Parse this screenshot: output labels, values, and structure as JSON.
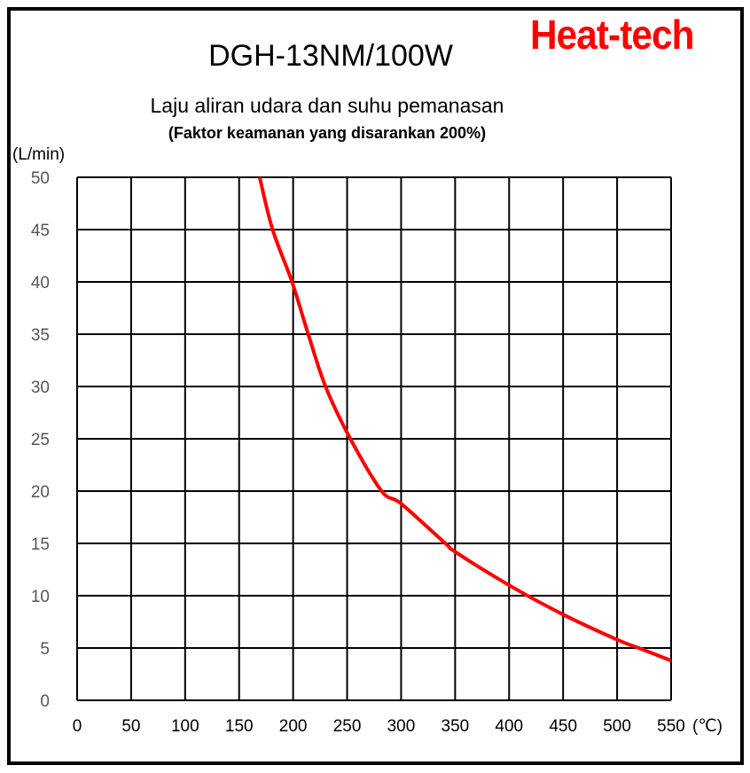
{
  "brand": "Heat-tech",
  "colors": {
    "curve": "#ff0000",
    "grid": "#000000",
    "brand": "#ff0000"
  },
  "chart_data": {
    "type": "line",
    "title": "DGH-13NM/100W",
    "subtitle": "Laju aliran udara dan suhu pemanasan",
    "subtitle2": "(Faktor keamanan yang disarankan 200%)",
    "ylabel": "(L/min)",
    "xlabel": "(℃)",
    "xlim": [
      0,
      550
    ],
    "ylim": [
      0,
      50
    ],
    "grid": true,
    "xticks": [
      "0",
      "50",
      "100",
      "150",
      "200",
      "250",
      "300",
      "350",
      "400",
      "450",
      "500",
      "550"
    ],
    "yticks": [
      "0",
      "5",
      "10",
      "15",
      "20",
      "25",
      "30",
      "35",
      "40",
      "45",
      "50"
    ],
    "series": [
      {
        "name": "airflow",
        "x": [
          169,
          181,
          199,
          214,
          230,
          253,
          282,
          300,
          341,
          350,
          400,
          450,
          500,
          520,
          550
        ],
        "y": [
          50,
          45,
          40,
          35,
          30,
          25,
          20,
          18.8,
          15,
          14.2,
          11,
          8.2,
          5.8,
          5,
          3.8
        ]
      }
    ]
  }
}
